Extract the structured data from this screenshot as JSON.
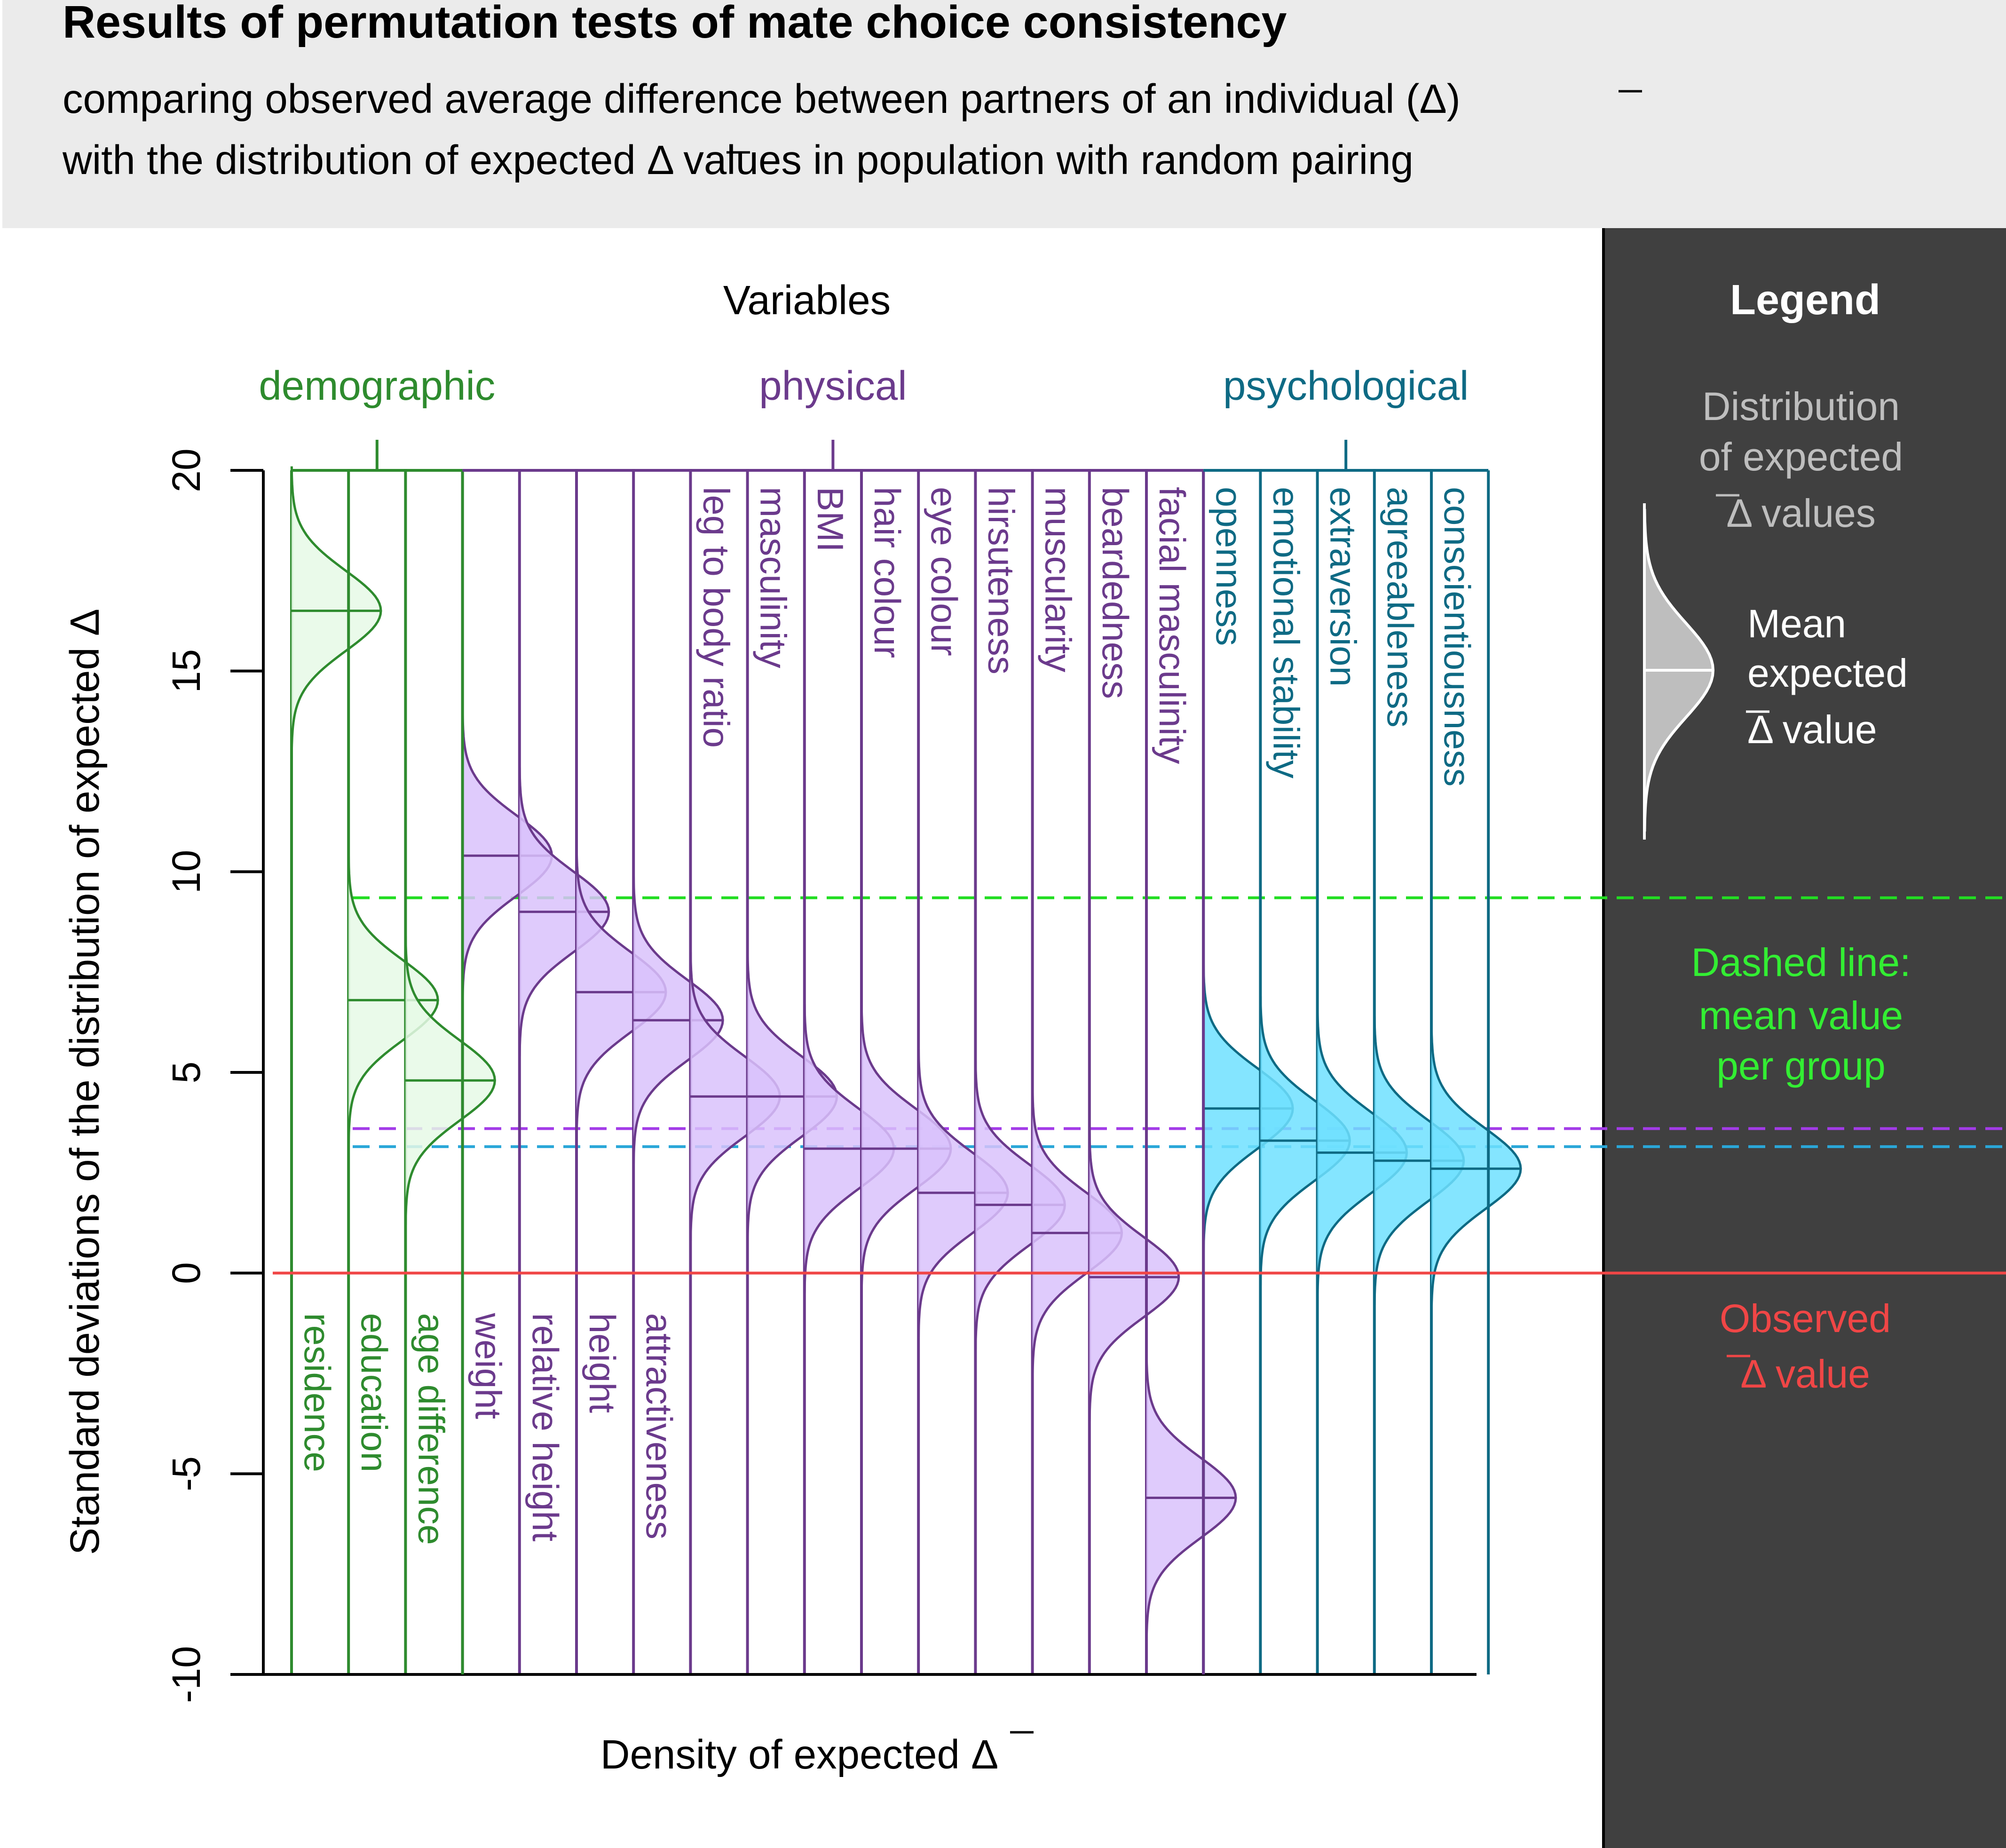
{
  "chart_data": {
    "type": "ridgeline-density",
    "title": "Results of permutation tests of mate choice consistency",
    "subtitle_line1": "comparing observed average difference between partners of an individual (Δ)",
    "subtitle_line2": "with the distribution of expected Δ values in population with random pairing",
    "header": "Variables",
    "xlabel": "Density of expected  Δ",
    "ylabel": "Standard deviations of the distribution of expected  Δ",
    "ylim": [
      -10,
      20
    ],
    "yticks": [
      20,
      15,
      10,
      5,
      0,
      -5,
      -10
    ],
    "tick_labels": [
      "20",
      "15",
      "10",
      "5",
      "0",
      "-5",
      "-10"
    ],
    "observed_value": 0,
    "groups": [
      {
        "key": "demographic",
        "label": "demographic",
        "color": "#2E8B2E",
        "fill": "#E6F9E6",
        "dash_color": "#22DD22",
        "group_mean": 9.35,
        "variables": [
          {
            "name": "residence",
            "mean": 16.5,
            "label_pos": "bottom"
          },
          {
            "name": "education",
            "mean": 6.8,
            "label_pos": "bottom"
          },
          {
            "name": "age difference",
            "mean": 4.8,
            "label_pos": "bottom"
          }
        ]
      },
      {
        "key": "physical",
        "label": "physical",
        "color": "#6B3A8C",
        "fill": "#D9C2FB",
        "dash_color": "#A33BE8",
        "group_mean": 3.6,
        "variables": [
          {
            "name": "weight",
            "mean": 10.4,
            "label_pos": "bottom"
          },
          {
            "name": "relative height",
            "mean": 9.0,
            "label_pos": "bottom"
          },
          {
            "name": "height",
            "mean": 7.0,
            "label_pos": "bottom"
          },
          {
            "name": "attractiveness",
            "mean": 6.3,
            "label_pos": "bottom"
          },
          {
            "name": "leg to body ratio",
            "mean": 4.4,
            "label_pos": "top"
          },
          {
            "name": "masculinity",
            "mean": 4.4,
            "label_pos": "top"
          },
          {
            "name": "BMI",
            "mean": 3.1,
            "label_pos": "top"
          },
          {
            "name": "hair colour",
            "mean": 3.1,
            "label_pos": "top"
          },
          {
            "name": "eye colour",
            "mean": 2.0,
            "label_pos": "top"
          },
          {
            "name": "hirsuteness",
            "mean": 1.7,
            "label_pos": "top"
          },
          {
            "name": "muscularity",
            "mean": 1.0,
            "label_pos": "top"
          },
          {
            "name": "beardedness",
            "mean": -0.1,
            "label_pos": "top"
          },
          {
            "name": "facial masculinity",
            "mean": -5.6,
            "label_pos": "top"
          }
        ]
      },
      {
        "key": "psychological",
        "label": "psychological",
        "color": "#0E6A84",
        "fill": "#6EE0FF",
        "dash_color": "#2AA7D8",
        "group_mean": 3.15,
        "variables": [
          {
            "name": "openness",
            "mean": 4.1,
            "label_pos": "top"
          },
          {
            "name": "emotional stability",
            "mean": 3.3,
            "label_pos": "top"
          },
          {
            "name": "extraversion",
            "mean": 3.0,
            "label_pos": "top"
          },
          {
            "name": "agreeableness",
            "mean": 2.8,
            "label_pos": "top"
          },
          {
            "name": "conscientiousness",
            "mean": 2.6,
            "label_pos": "top"
          }
        ]
      }
    ]
  },
  "legend": {
    "title": "Legend",
    "distribution_line1": "Distribution",
    "distribution_line2": "of expected",
    "distribution_line3": "Δ  values",
    "mean_line1": "Mean",
    "mean_line2": "expected",
    "mean_line3": "Δ  value",
    "dashed_line1": "Dashed line:",
    "dashed_line2": "mean value",
    "dashed_line3": "per group",
    "observed_line1": "Observed",
    "observed_line2": "Δ  value",
    "colors": {
      "panel": "#404040",
      "distribution_text": "#BEBEBE",
      "mean_text": "#FFFFFF",
      "dashed_text": "#33EE33",
      "observed_text": "#F04646"
    }
  }
}
